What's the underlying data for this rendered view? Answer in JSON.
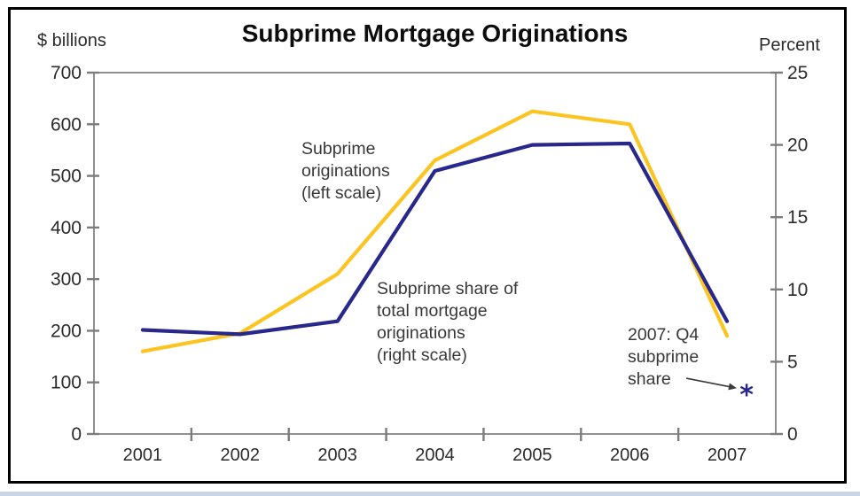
{
  "chart_data": {
    "type": "line",
    "title": "Subprime Mortgage Originations",
    "x": [
      "2001",
      "2002",
      "2003",
      "2004",
      "2005",
      "2006",
      "2007"
    ],
    "series": [
      {
        "name": "Subprime originations",
        "axis": "left",
        "color": "#FCC420",
        "values": [
          160,
          195,
          310,
          530,
          625,
          600,
          190
        ]
      },
      {
        "name": "Subprime share of total mortgage originations",
        "axis": "right",
        "color": "#28288C",
        "values": [
          7.2,
          6.9,
          7.8,
          18.2,
          20.0,
          20.1,
          7.8
        ]
      }
    ],
    "left_axis": {
      "unit": "$ billions",
      "min": 0,
      "max": 700,
      "ticks": [
        0,
        100,
        200,
        300,
        400,
        500,
        600,
        700
      ]
    },
    "right_axis": {
      "unit": "Percent",
      "min": 0,
      "max": 25,
      "ticks": [
        0,
        5,
        10,
        15,
        20,
        25
      ]
    },
    "grid": false,
    "legend_position": "inline-annotations",
    "annotations": {
      "originations_label": {
        "text": "Subprime\noriginations\n(left scale)"
      },
      "share_label": {
        "text": "Subprime share of\ntotal mortgage\noriginations\n(right scale)"
      },
      "q4_label": {
        "text": "2007: Q4\nsubprime\nshare"
      }
    },
    "point_marker": {
      "label": "2007: Q4 subprime share",
      "x": "2007 Q4",
      "value_percent": 3.0,
      "symbol": "*",
      "color": "#28288C"
    },
    "colors": {
      "axis": "#7C7C7C",
      "tick_text": "#2B2B2B",
      "title_text": "#0D0D0D",
      "annotation_text": "#383838",
      "arrow": "#3A3A3A",
      "frame_border": "#000000",
      "background": "#FFFFFF"
    }
  }
}
